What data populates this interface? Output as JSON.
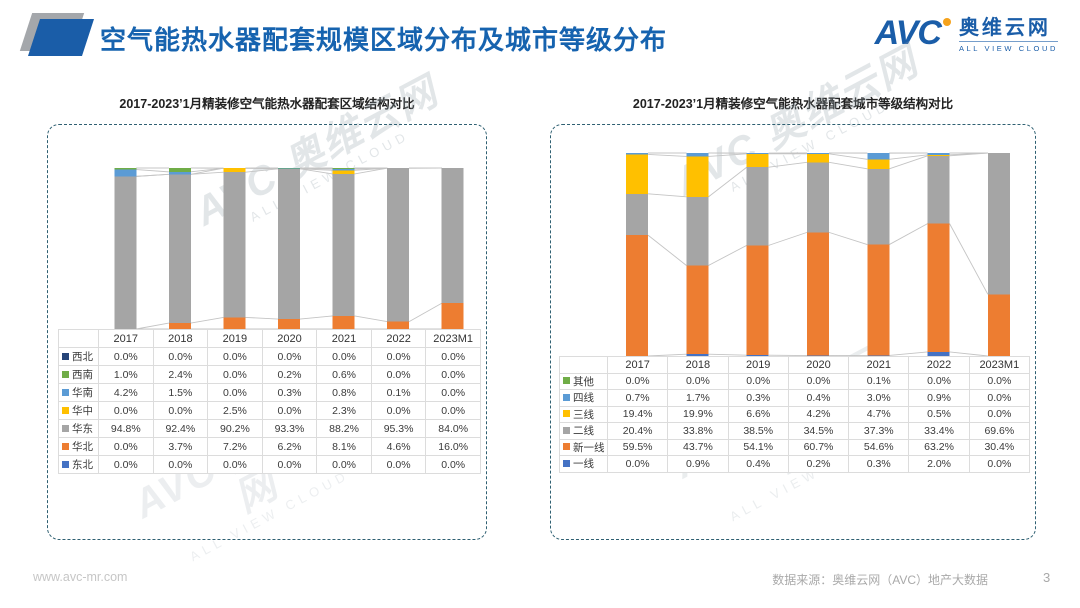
{
  "page": {
    "title": "空气能热水器配套规模区域分布及城市等级分布",
    "page_number": "3"
  },
  "brand": {
    "name": "AVC",
    "cn": "奥维云网",
    "sub": "ALL VIEW CLOUD",
    "brand_blue": "#1a5da8",
    "accent_orange": "#f5a21b"
  },
  "watermark": {
    "text": "AVC 奥维云网",
    "sub": "ALL VIEW CLOUD"
  },
  "footer": {
    "website": "www.avc-mr.com",
    "source": "数据来源：奥维云网（AVC）地产大数据"
  },
  "panel_border_color": "#2f6072",
  "chart_data": [
    {
      "type": "bar",
      "stacked": true,
      "percent_stacked": true,
      "title": "2017-2023’1月精装修空气能热水器配套区域结构对比",
      "categories": [
        "2017",
        "2018",
        "2019",
        "2020",
        "2021",
        "2022",
        "2023M1"
      ],
      "series": [
        {
          "name": "西北",
          "color": "#264478",
          "values": [
            0.0,
            0.0,
            0.0,
            0.0,
            0.0,
            0.0,
            0.0
          ]
        },
        {
          "name": "西南",
          "color": "#70AD47",
          "values": [
            1.0,
            2.4,
            0.0,
            0.2,
            0.6,
            0.0,
            0.0
          ]
        },
        {
          "name": "华南",
          "color": "#5B9BD5",
          "values": [
            4.2,
            1.5,
            0.0,
            0.3,
            0.8,
            0.1,
            0.0
          ]
        },
        {
          "name": "华中",
          "color": "#FFC000",
          "values": [
            0.0,
            0.0,
            2.5,
            0.0,
            2.3,
            0.0,
            0.0
          ]
        },
        {
          "name": "华东",
          "color": "#A5A5A5",
          "values": [
            94.8,
            92.4,
            90.2,
            93.3,
            88.2,
            95.3,
            84.0
          ]
        },
        {
          "name": "华北",
          "color": "#ED7D31",
          "values": [
            0.0,
            3.7,
            7.2,
            6.2,
            8.1,
            4.6,
            16.0
          ]
        },
        {
          "name": "东北",
          "color": "#4472C4",
          "values": [
            0.0,
            0.0,
            0.0,
            0.0,
            0.0,
            0.0,
            0.0
          ]
        }
      ],
      "stack_order": "bottom-to-top is reverse of series list",
      "ylim": [
        0,
        100
      ],
      "grid": false,
      "legend_position": "table-left-column",
      "value_format": "0.0%",
      "series_line_color": "#c4c4c4"
    },
    {
      "type": "bar",
      "stacked": true,
      "percent_stacked": true,
      "title": "2017-2023’1月精装修空气能热水器配套城市等级结构对比",
      "categories": [
        "2017",
        "2018",
        "2019",
        "2020",
        "2021",
        "2022",
        "2023M1"
      ],
      "series": [
        {
          "name": "其他",
          "color": "#70AD47",
          "values": [
            0.0,
            0.0,
            0.0,
            0.0,
            0.1,
            0.0,
            0.0
          ]
        },
        {
          "name": "四线",
          "color": "#5B9BD5",
          "values": [
            0.7,
            1.7,
            0.3,
            0.4,
            3.0,
            0.9,
            0.0
          ]
        },
        {
          "name": "三线",
          "color": "#FFC000",
          "values": [
            19.4,
            19.9,
            6.6,
            4.2,
            4.7,
            0.5,
            0.0
          ]
        },
        {
          "name": "二线",
          "color": "#A5A5A5",
          "values": [
            20.4,
            33.8,
            38.5,
            34.5,
            37.3,
            33.4,
            69.6
          ]
        },
        {
          "name": "新一线",
          "color": "#ED7D31",
          "values": [
            59.5,
            43.7,
            54.1,
            60.7,
            54.6,
            63.2,
            30.4
          ]
        },
        {
          "name": "一线",
          "color": "#4472C4",
          "values": [
            0.0,
            0.9,
            0.4,
            0.2,
            0.3,
            2.0,
            0.0
          ]
        }
      ],
      "stack_order": "bottom-to-top is reverse of series list",
      "ylim": [
        0,
        100
      ],
      "grid": false,
      "legend_position": "table-left-column",
      "value_format": "0.0%",
      "series_line_color": "#c4c4c4"
    }
  ]
}
